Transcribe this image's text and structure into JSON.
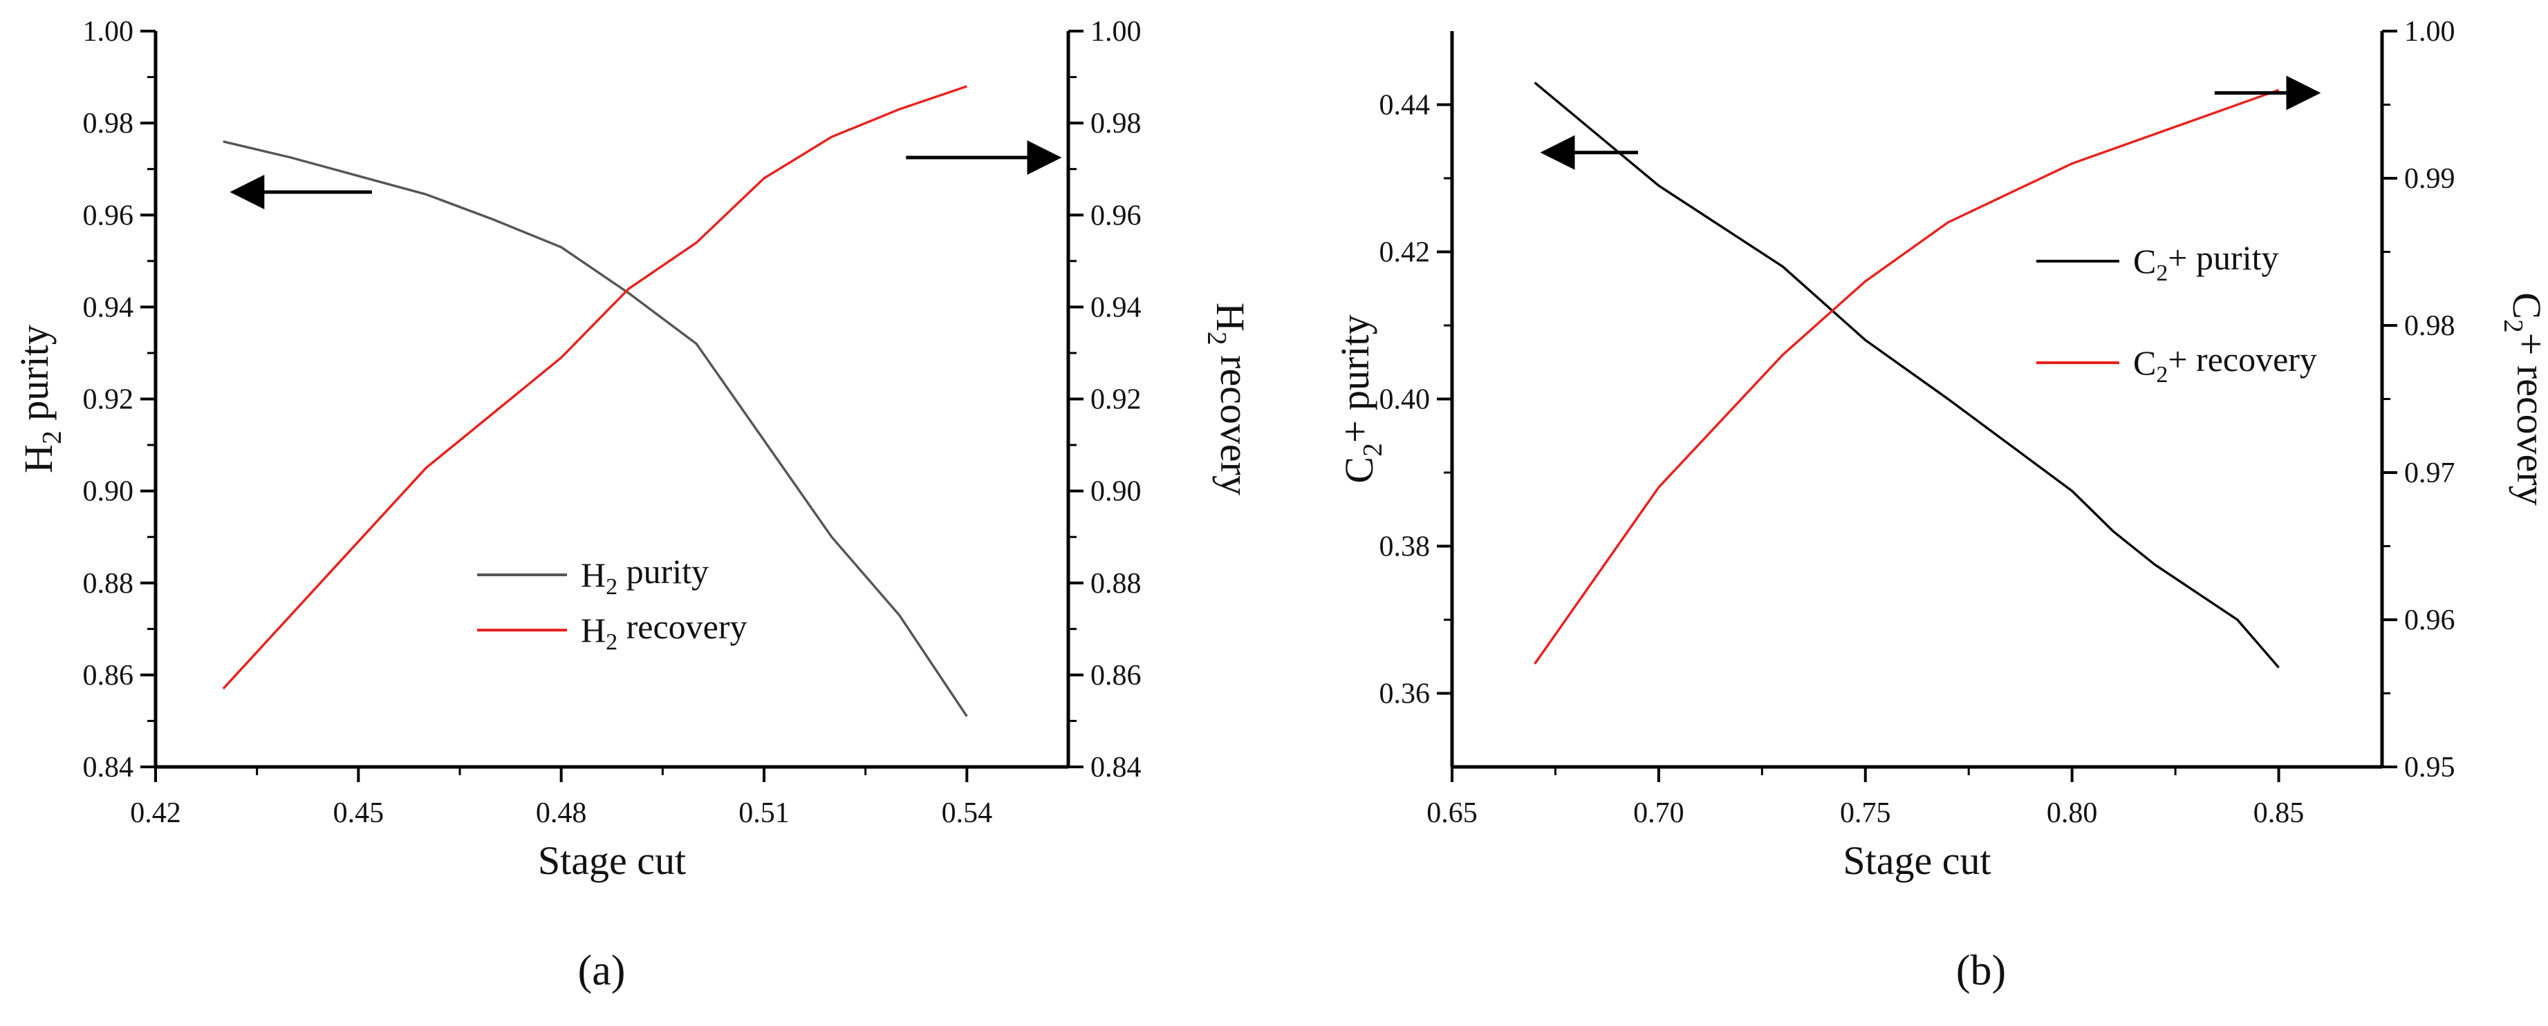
{
  "chart_data": [
    {
      "type": "line",
      "panel_label": "(a)",
      "xlabel": "Stage cut",
      "ylabel_left": {
        "main": "H",
        "sub": "2",
        "rest": " purity"
      },
      "ylabel_right": {
        "main": "H",
        "sub": "2",
        "rest": " recovery"
      },
      "xlim": [
        0.42,
        0.555
      ],
      "ylim_left": [
        0.84,
        1.0
      ],
      "ylim_right": [
        0.84,
        1.0
      ],
      "x_ticks": [
        0.42,
        0.45,
        0.48,
        0.51,
        0.54
      ],
      "x_tick_labels": [
        "0.42",
        "0.45",
        "0.48",
        "0.51",
        "0.54"
      ],
      "y_ticks_left": [
        0.84,
        0.86,
        0.88,
        0.9,
        0.92,
        0.94,
        0.96,
        0.98,
        1.0
      ],
      "y_tick_labels_left": [
        "0.84",
        "0.86",
        "0.88",
        "0.90",
        "0.92",
        "0.94",
        "0.96",
        "0.98",
        "1.00"
      ],
      "y_ticks_right": [
        0.84,
        0.86,
        0.88,
        0.9,
        0.92,
        0.94,
        0.96,
        0.98,
        1.0
      ],
      "y_tick_labels_right": [
        "0.84",
        "0.86",
        "0.88",
        "0.90",
        "0.92",
        "0.94",
        "0.96",
        "0.98",
        "1.00"
      ],
      "legend_position": "center-bottom",
      "grid": false,
      "series": [
        {
          "name": {
            "main": "H",
            "sub": "2",
            "rest": " purity"
          },
          "axis": "left",
          "color": "#555555",
          "x": [
            0.43,
            0.44,
            0.45,
            0.46,
            0.47,
            0.48,
            0.49,
            0.5,
            0.51,
            0.52,
            0.53,
            0.54
          ],
          "y": [
            0.976,
            0.9725,
            0.9685,
            0.9645,
            0.959,
            0.953,
            0.943,
            0.932,
            0.911,
            0.89,
            0.873,
            0.851
          ]
        },
        {
          "name": {
            "main": "H",
            "sub": "2",
            "rest": " recovery"
          },
          "axis": "right",
          "color": "#e8211d",
          "x": [
            0.43,
            0.44,
            0.45,
            0.46,
            0.47,
            0.48,
            0.49,
            0.5,
            0.51,
            0.52,
            0.53,
            0.54
          ],
          "y": [
            0.857,
            0.873,
            0.889,
            0.905,
            0.917,
            0.929,
            0.944,
            0.954,
            0.968,
            0.977,
            0.983,
            0.988
          ]
        }
      ],
      "arrows": [
        {
          "direction": "left",
          "axis": "left",
          "x_start": 0.452,
          "x_end": 0.432,
          "y": 0.965
        },
        {
          "direction": "right",
          "axis": "right",
          "x_start": 0.531,
          "x_end": 0.553,
          "y": 0.9725
        }
      ]
    },
    {
      "type": "line",
      "panel_label": "(b)",
      "xlabel": "Stage cut",
      "ylabel_left": {
        "main": "C",
        "sub": "2",
        "rest": "+ purity"
      },
      "ylabel_right": {
        "main": "C",
        "sub": "2",
        "rest": "+ recovery"
      },
      "xlim": [
        0.65,
        0.875
      ],
      "ylim_left": [
        0.35,
        0.45
      ],
      "ylim_right": [
        0.95,
        1.0
      ],
      "x_ticks": [
        0.65,
        0.7,
        0.75,
        0.8,
        0.85
      ],
      "x_tick_labels": [
        "0.65",
        "0.70",
        "0.75",
        "0.80",
        "0.85"
      ],
      "y_ticks_left": [
        0.36,
        0.38,
        0.4,
        0.42,
        0.44
      ],
      "y_tick_labels_left": [
        "0.36",
        "0.38",
        "0.40",
        "0.42",
        "0.44"
      ],
      "y_ticks_right": [
        0.95,
        0.96,
        0.97,
        0.98,
        0.99,
        1.0
      ],
      "y_tick_labels_right": [
        "0.95",
        "0.96",
        "0.97",
        "0.98",
        "0.99",
        "1.00"
      ],
      "legend_position": "upper-right",
      "grid": false,
      "series": [
        {
          "name": {
            "main": "C",
            "sub": "2",
            "rest": "+ purity"
          },
          "axis": "left",
          "color": "#000000",
          "x": [
            0.67,
            0.7,
            0.73,
            0.75,
            0.77,
            0.8,
            0.81,
            0.82,
            0.84,
            0.85
          ],
          "y": [
            0.443,
            0.429,
            0.418,
            0.408,
            0.4,
            0.3875,
            0.382,
            0.3775,
            0.37,
            0.3635
          ]
        },
        {
          "name": {
            "main": "C",
            "sub": "2",
            "rest": "+ recovery"
          },
          "axis": "right",
          "color": "#e8211d",
          "x": [
            0.67,
            0.7,
            0.73,
            0.75,
            0.77,
            0.8,
            0.85
          ],
          "y": [
            0.957,
            0.969,
            0.978,
            0.983,
            0.987,
            0.991,
            0.996
          ]
        }
      ],
      "arrows": [
        {
          "direction": "left",
          "axis": "left",
          "x_start": 0.695,
          "x_end": 0.673,
          "y": 0.4335
        },
        {
          "direction": "right",
          "axis": "right",
          "x_start": 0.8345,
          "x_end": 0.8585,
          "y": 0.9958
        }
      ]
    }
  ]
}
